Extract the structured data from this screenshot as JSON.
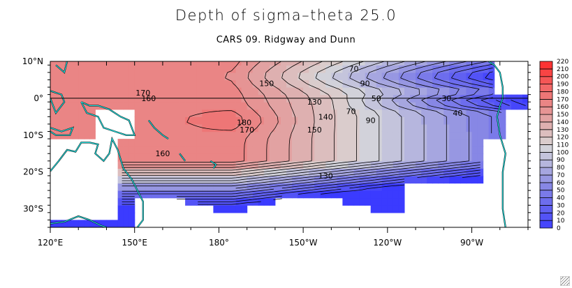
{
  "chart_data": {
    "type": "heatmap",
    "title": "Depth of sigma–theta 25.0",
    "subtitle": "CARS 09. Ridgway and Dunn",
    "xlabel": "",
    "ylabel": "",
    "x_range_deg_east": [
      120,
      290
    ],
    "y_range_deg_north": [
      -35,
      10
    ],
    "x_ticks": [
      {
        "value": 120,
        "label": "120°E"
      },
      {
        "value": 150,
        "label": "150°E"
      },
      {
        "value": 180,
        "label": "180°"
      },
      {
        "value": 210,
        "label": "150°W"
      },
      {
        "value": 240,
        "label": "120°W"
      },
      {
        "value": 270,
        "label": "90°W"
      }
    ],
    "y_ticks": [
      {
        "value": 10,
        "label": "10°N"
      },
      {
        "value": 0,
        "label": "0°"
      },
      {
        "value": -10,
        "label": "10°S"
      },
      {
        "value": -20,
        "label": "20°S"
      },
      {
        "value": -30,
        "label": "30°S"
      }
    ],
    "equator_line": true,
    "colorbar": {
      "position": "right",
      "levels": [
        0,
        10,
        20,
        30,
        40,
        50,
        60,
        70,
        80,
        90,
        100,
        110,
        120,
        130,
        140,
        150,
        160,
        170,
        180,
        190,
        200,
        210,
        220
      ],
      "colors": [
        "#3b3bff",
        "#4646fb",
        "#5353f6",
        "#6060f1",
        "#6d6ded",
        "#7a7ae9",
        "#8787e5",
        "#9797e2",
        "#a6a6e0",
        "#b6b6de",
        "#c4c4dc",
        "#d2d2da",
        "#dacccc",
        "#dcbebe",
        "#deb0b0",
        "#e2a2a2",
        "#e69494",
        "#ea8585",
        "#ee7676",
        "#f26868",
        "#f55656",
        "#f94444",
        "#fc3333"
      ]
    },
    "contour_labels": [
      {
        "lon": 153,
        "lat": 1.5,
        "text": "170"
      },
      {
        "lon": 155,
        "lat": 0,
        "text": "160"
      },
      {
        "lon": 197,
        "lat": 4,
        "text": "150"
      },
      {
        "lon": 214,
        "lat": -1,
        "text": "130"
      },
      {
        "lon": 189,
        "lat": -6.5,
        "text": "180"
      },
      {
        "lon": 190,
        "lat": -8.5,
        "text": "170"
      },
      {
        "lon": 218,
        "lat": -5,
        "text": "140"
      },
      {
        "lon": 214,
        "lat": -8.5,
        "text": "150"
      },
      {
        "lon": 160,
        "lat": -15,
        "text": "160"
      },
      {
        "lon": 218,
        "lat": -21,
        "text": "130"
      },
      {
        "lon": 228,
        "lat": 8,
        "text": "70"
      },
      {
        "lon": 232,
        "lat": 4,
        "text": "90"
      },
      {
        "lon": 236,
        "lat": 0,
        "text": "50"
      },
      {
        "lon": 261,
        "lat": 0,
        "text": "30"
      },
      {
        "lon": 265,
        "lat": -4,
        "text": "40"
      },
      {
        "lon": 227,
        "lat": -3.5,
        "text": "70"
      },
      {
        "lon": 234,
        "lat": -6,
        "text": "90"
      }
    ],
    "field_description": "Depth (m) of the sigma-theta 25.0 isopycnal over the tropical Pacific; maximum ~180+ m near 170-185°E, 5-8°S; decreasing eastward to <30 m near 90°W on the equator; steep shoaling south of ~20°S"
  }
}
